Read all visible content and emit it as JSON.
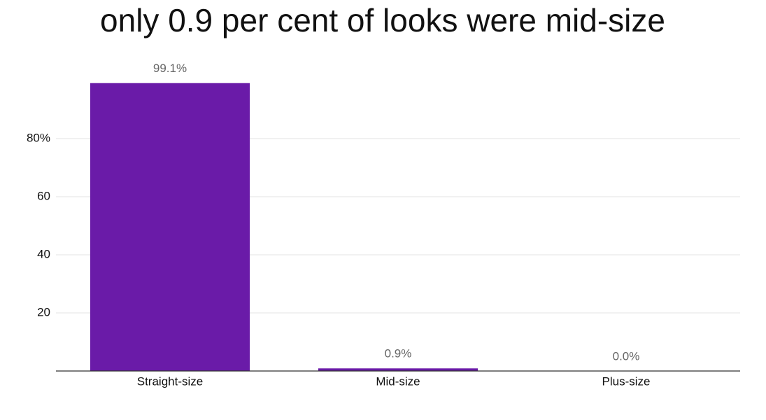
{
  "chart_data": {
    "type": "bar",
    "title": "only 0.9 per cent of looks were mid-size",
    "categories": [
      "Straight-size",
      "Mid-size",
      "Plus-size"
    ],
    "values": [
      99.1,
      0.9,
      0.0
    ],
    "value_labels": [
      "99.1%",
      "0.9%",
      "0.0%"
    ],
    "color": "#6a1ba8",
    "ylim": [
      0,
      100
    ],
    "yticks": [
      20,
      40,
      60,
      {
        "value": 80,
        "label": "80%"
      }
    ],
    "grid": true
  }
}
